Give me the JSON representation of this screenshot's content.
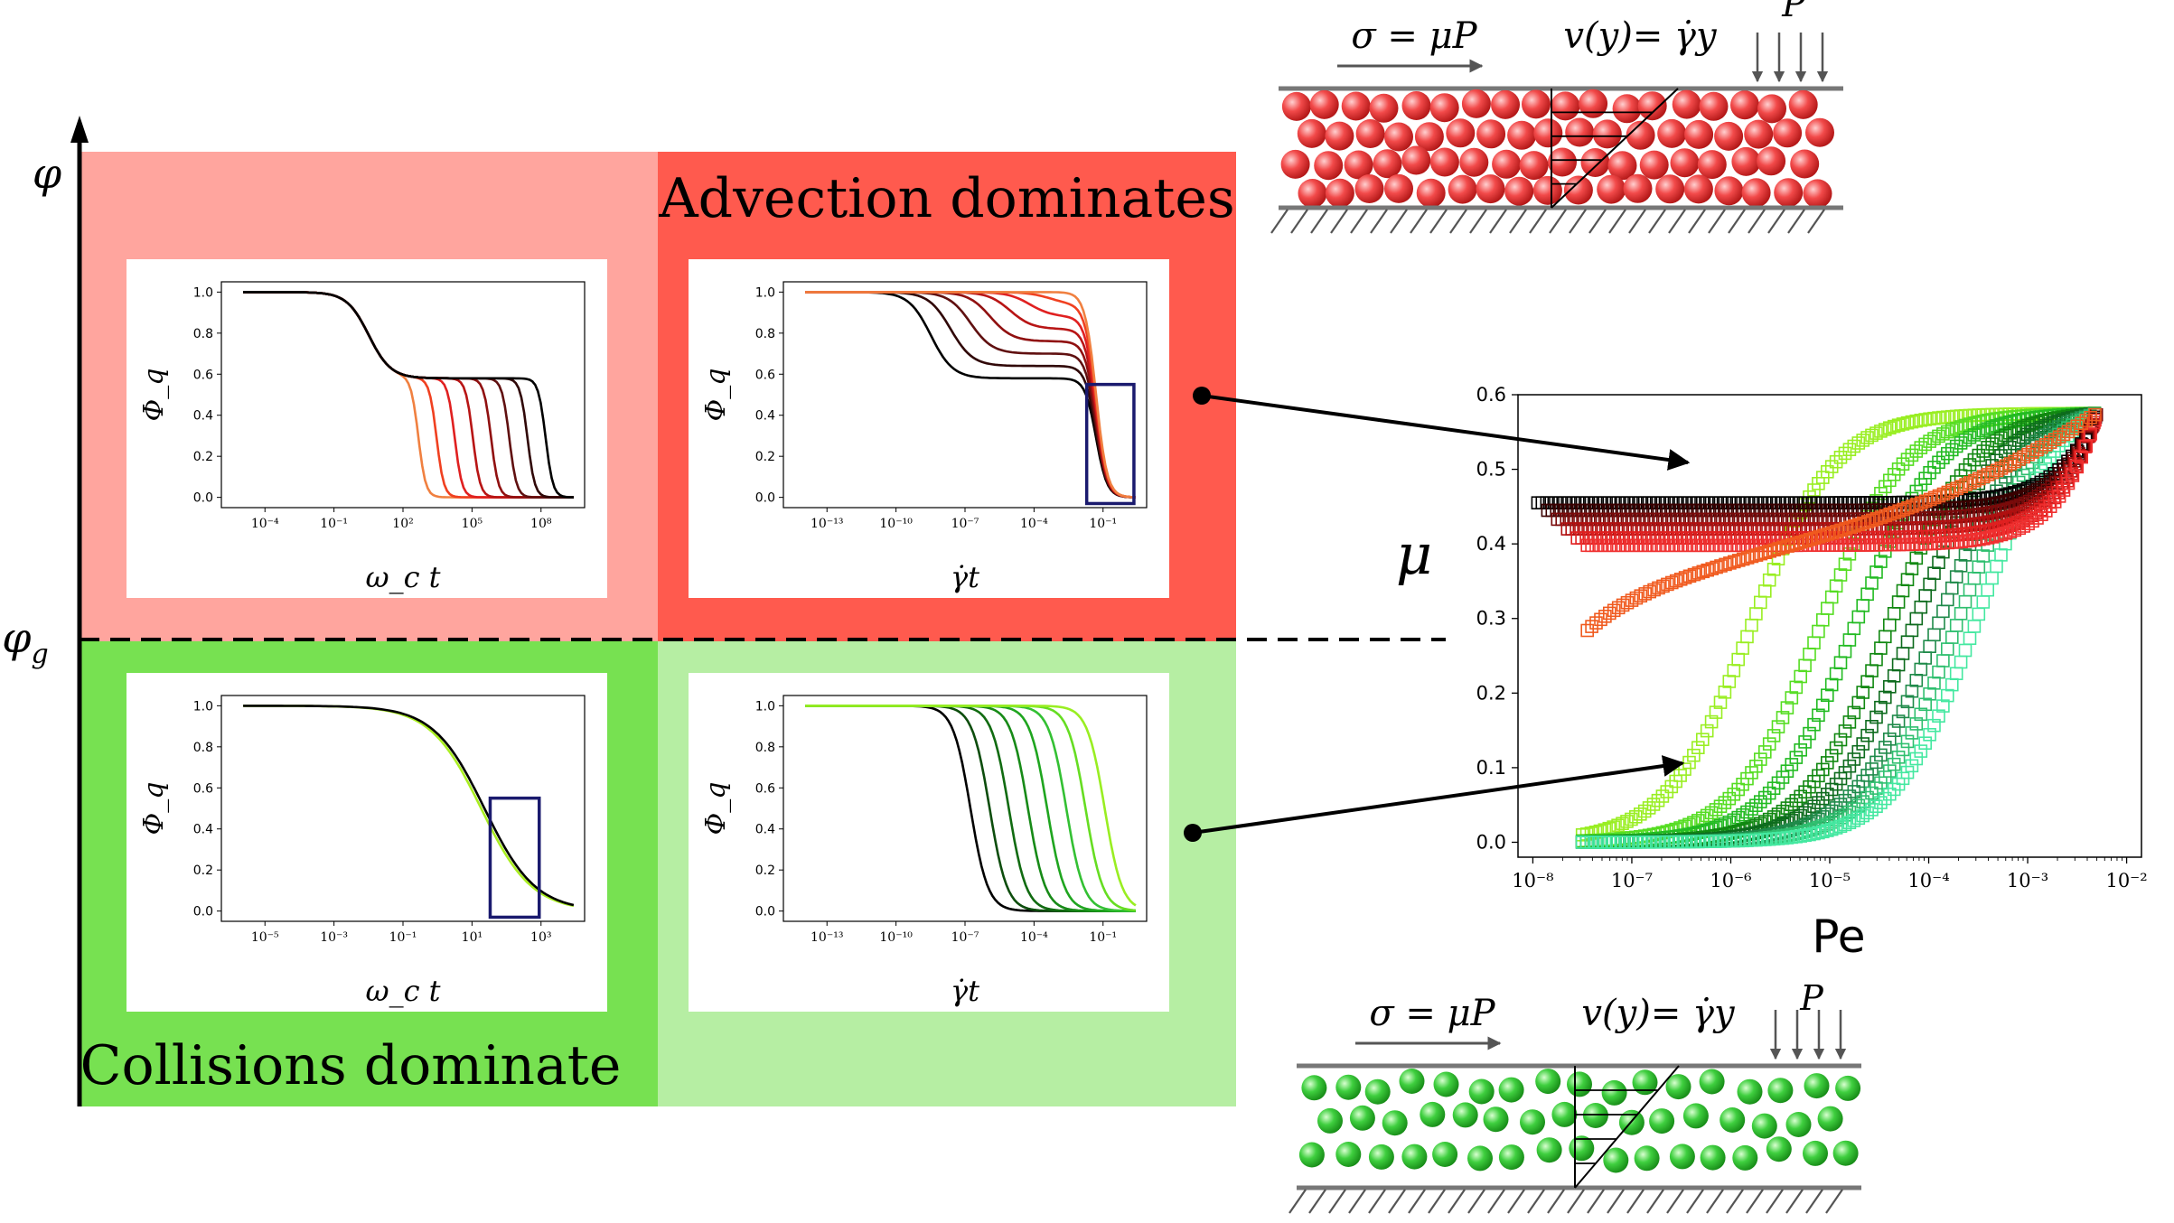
{
  "colors": {
    "advection_light": "#ffa59e",
    "advection_strong": "#ff5a4e",
    "collision_strong": "#77e151",
    "collision_light": "#b6eea3",
    "red_particle": "#f24a4a",
    "green_particle": "#3fcf3f",
    "navy_box": "#1a1a6e"
  },
  "axes": {
    "phi_label": "φ",
    "phi_g_label": "φ_g"
  },
  "regions": {
    "advection_label": "Advection dominates",
    "collision_label": "Collisions dominate"
  },
  "schematic": {
    "stress_label": "σ = μP",
    "velocity_label": "v(y)= γ̇y",
    "pressure_label": "P"
  },
  "panels": [
    {
      "id": "top-left",
      "ylabel": "Φ_q",
      "xlabel": "ω_c t",
      "xticks": [
        "10⁻⁴",
        "10⁻¹",
        "10²",
        "10⁵",
        "10⁸"
      ],
      "yticks": [
        "0.0",
        "0.2",
        "0.4",
        "0.6",
        "0.8",
        "1.0"
      ]
    },
    {
      "id": "top-right",
      "ylabel": "Φ_q",
      "xlabel": "γ̇t",
      "xticks": [
        "10⁻¹³",
        "10⁻¹⁰",
        "10⁻⁷",
        "10⁻⁴",
        "10⁻¹"
      ],
      "yticks": [
        "0.0",
        "0.2",
        "0.4",
        "0.6",
        "0.8",
        "1.0"
      ]
    },
    {
      "id": "bottom-left",
      "ylabel": "Φ_q",
      "xlabel": "ω_c t",
      "xticks": [
        "10⁻⁵",
        "10⁻³",
        "10⁻¹",
        "10¹",
        "10³"
      ],
      "yticks": [
        "0.0",
        "0.2",
        "0.4",
        "0.6",
        "0.8",
        "1.0"
      ]
    },
    {
      "id": "bottom-right",
      "ylabel": "Φ_q",
      "xlabel": "γ̇t",
      "xticks": [
        "10⁻¹³",
        "10⁻¹⁰",
        "10⁻⁷",
        "10⁻⁴",
        "10⁻¹"
      ],
      "yticks": [
        "0.0",
        "0.2",
        "0.4",
        "0.6",
        "0.8",
        "1.0"
      ]
    }
  ],
  "chart_data": {
    "type": "scatter",
    "title": "",
    "xlabel": "Pe",
    "ylabel": "μ",
    "xscale": "log",
    "xlim": [
      -8.15,
      -1.85
    ],
    "ylim": [
      -0.02,
      0.6
    ],
    "xticks": [
      "10⁻⁸",
      "10⁻⁷",
      "10⁻⁶",
      "10⁻⁵",
      "10⁻⁴",
      "10⁻³",
      "10⁻²"
    ],
    "yticks": [
      "0.0",
      "0.1",
      "0.2",
      "0.3",
      "0.4",
      "0.5",
      "0.6"
    ],
    "series_red": [
      {
        "name": "red-1",
        "color": "#000000",
        "start_log_pe": -7.95,
        "start_mu": 0.455
      },
      {
        "name": "red-2",
        "color": "#3a0000",
        "start_log_pe": -7.85,
        "start_mu": 0.445
      },
      {
        "name": "red-3",
        "color": "#7a0a0a",
        "start_log_pe": -7.75,
        "start_mu": 0.433
      },
      {
        "name": "red-4",
        "color": "#b01010",
        "start_log_pe": -7.65,
        "start_mu": 0.42
      },
      {
        "name": "red-5",
        "color": "#e02020",
        "start_log_pe": -7.55,
        "start_mu": 0.408
      },
      {
        "name": "red-6",
        "color": "#f03030",
        "start_log_pe": -7.45,
        "start_mu": 0.398
      },
      {
        "name": "red-7",
        "color": "#f05a1e",
        "start_log_pe": -7.45,
        "start_mu": 0.284
      }
    ],
    "series_green": [
      {
        "name": "green-1",
        "color": "#99ee22",
        "mid_log_pe": -5.8
      },
      {
        "name": "green-2",
        "color": "#55dd22",
        "mid_log_pe": -5.1
      },
      {
        "name": "green-3",
        "color": "#22bb22",
        "mid_log_pe": -4.75
      },
      {
        "name": "green-4",
        "color": "#118811",
        "mid_log_pe": -4.4
      },
      {
        "name": "green-5",
        "color": "#0d6b1d",
        "mid_log_pe": -4.15
      },
      {
        "name": "green-6",
        "color": "#1f8a4a",
        "mid_log_pe": -3.9
      },
      {
        "name": "green-7",
        "color": "#2fbf6f",
        "mid_log_pe": -3.7
      },
      {
        "name": "green-8",
        "color": "#44e8a0",
        "mid_log_pe": -3.5
      }
    ],
    "end_point": {
      "log_pe": -2.3,
      "mu": 0.575
    }
  }
}
